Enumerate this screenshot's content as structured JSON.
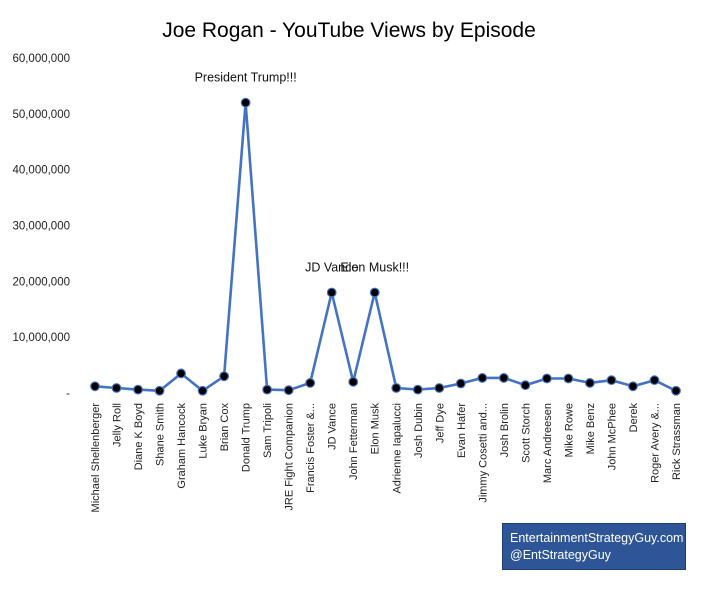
{
  "chart_data": {
    "type": "line",
    "title": "Joe Rogan - YouTube Views by Episode",
    "xlabel": "",
    "ylabel": "",
    "ylim": [
      0,
      60000000
    ],
    "yticks": [
      0,
      10000000,
      20000000,
      30000000,
      40000000,
      50000000,
      60000000
    ],
    "ytick_labels": [
      "-",
      "10,000,000",
      "20,000,000",
      "30,000,000",
      "40,000,000",
      "50,000,000",
      "60,000,000"
    ],
    "grid": false,
    "line_color": "#4472c4",
    "marker_color": "#000000",
    "categories": [
      "Michael Shellenberger",
      "Jelly Roll",
      "Diane K Boyd",
      "Shane Smith",
      "Graham Hancock",
      "Luke Bryan",
      "Brian Cox",
      "Donald Trump",
      "Sam Tripoli",
      "JRE Fight Companion",
      "Francis Foster &...",
      "JD Vance",
      "John Fetterman",
      "Elon Musk",
      "Adrienne Iapalucci",
      "Josh Dubin",
      "Jeff Dye",
      "Evan Hafer",
      "Jimmy Cosetti and...",
      "Josh Brolin",
      "Scott Storch",
      "Marc Andreesen",
      "Mike Rowe",
      "Mike Benz",
      "John McPhee",
      "Derek",
      "Roger Avery &...",
      "Rick Strassman"
    ],
    "values": [
      1200000,
      900000,
      600000,
      400000,
      3500000,
      400000,
      3000000,
      52000000,
      600000,
      500000,
      1800000,
      18000000,
      2000000,
      18000000,
      900000,
      600000,
      900000,
      1700000,
      2700000,
      2700000,
      1400000,
      2600000,
      2600000,
      1800000,
      2300000,
      1200000,
      2300000,
      400000
    ],
    "annotations": [
      {
        "text": "President Trump!!!",
        "category": "Donald Trump"
      },
      {
        "text": "JD Vance",
        "category": "JD Vance"
      },
      {
        "text": "Elon Musk!!!",
        "category": "Elon Musk"
      }
    ]
  },
  "watermark": {
    "line1": "EntertainmentStrategyGuy.com",
    "line2": "@EntStrategyGuy",
    "background": "#2e5597"
  }
}
